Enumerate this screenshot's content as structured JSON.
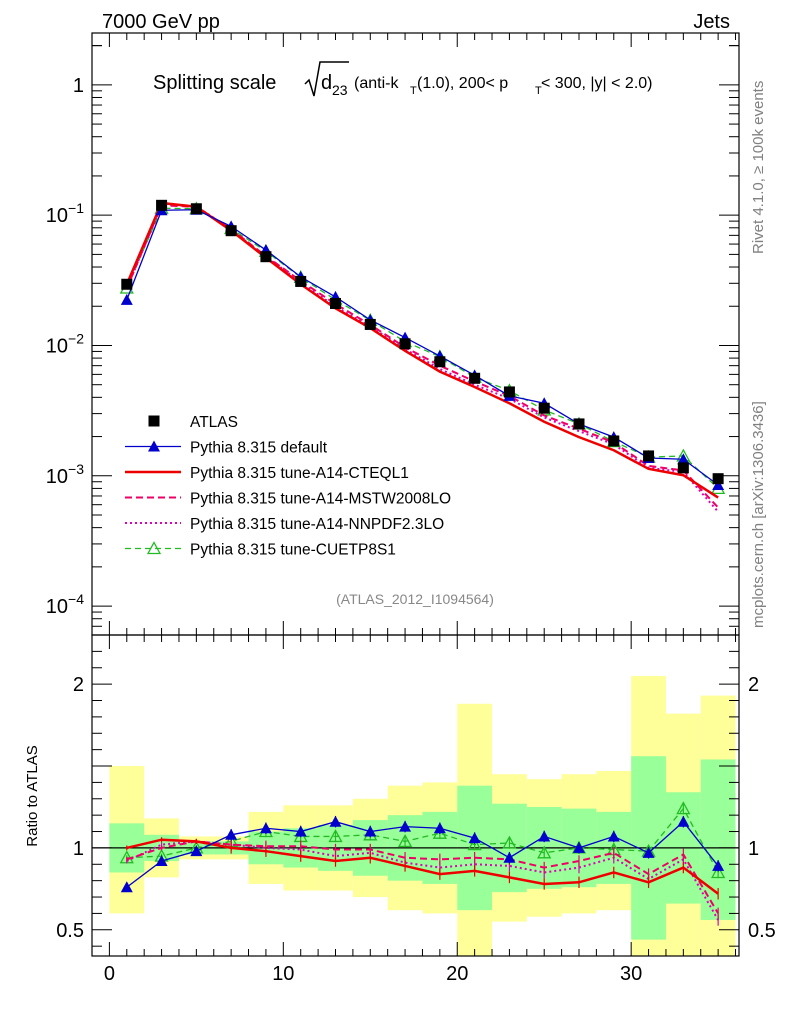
{
  "header": {
    "left": "7000 GeV pp",
    "right": "Jets"
  },
  "side_labels": {
    "top": "Rivet 4.1.0, ≥ 100k events",
    "bottom": "mcplots.cern.ch [arXiv:1306.3436]"
  },
  "chart_data": {
    "type": "line",
    "title": {
      "main": "Splitting scale",
      "var": "d",
      "var_sub": "23",
      "rest1": "(anti-k",
      "rest1_sub": "T",
      "rest2": "(1.0), 200< p",
      "rest2_sub": "T",
      "rest3": " < 300, |y| < 2.0)"
    },
    "analysis_id": "(ATLAS_2012_I1094564)",
    "xlim": [
      -1,
      36.2
    ],
    "x_ticks": [
      0,
      10,
      20,
      30
    ],
    "main_ylim": [
      6e-05,
      2.5
    ],
    "main_y_ticks": [
      {
        "value": 1,
        "base": "1",
        "exp": ""
      },
      {
        "value": 0.1,
        "base": "10",
        "exp": "−1"
      },
      {
        "value": 0.01,
        "base": "10",
        "exp": "−2"
      },
      {
        "value": 0.001,
        "base": "10",
        "exp": "−3"
      },
      {
        "value": 0.0001,
        "base": "10",
        "exp": "−4"
      }
    ],
    "ratio_ylim": [
      0.34,
      2.3
    ],
    "ratio_ylabel": "Ratio to ATLAS",
    "ratio_y_ticks": [
      {
        "value": 0.5,
        "label": "0.5"
      },
      {
        "value": 1,
        "label": "1"
      },
      {
        "value": 2,
        "label": "2"
      }
    ],
    "x": [
      1,
      3,
      5,
      7,
      9,
      11,
      13,
      15,
      17,
      19,
      21,
      23,
      25,
      27,
      29,
      31,
      33,
      35
    ],
    "bin_edges": [
      0,
      2,
      4,
      6,
      8,
      10,
      12,
      14,
      16,
      18,
      20,
      22,
      24,
      26,
      28,
      30,
      32,
      34,
      36
    ],
    "band_inner": [
      [
        0.85,
        1.15
      ],
      [
        0.92,
        1.08
      ],
      [
        0.96,
        1.04
      ],
      [
        0.96,
        1.04
      ],
      [
        0.9,
        1.1
      ],
      [
        0.88,
        1.12
      ],
      [
        0.86,
        1.14
      ],
      [
        0.83,
        1.17
      ],
      [
        0.8,
        1.2
      ],
      [
        0.78,
        1.22
      ],
      [
        0.62,
        1.38
      ],
      [
        0.73,
        1.27
      ],
      [
        0.75,
        1.25
      ],
      [
        0.76,
        1.24
      ],
      [
        0.78,
        1.22
      ],
      [
        0.44,
        1.56
      ],
      [
        0.66,
        1.34
      ],
      [
        0.56,
        1.54
      ]
    ],
    "band_outer": [
      [
        0.6,
        1.5
      ],
      [
        0.82,
        1.18
      ],
      [
        0.93,
        1.07
      ],
      [
        0.93,
        1.07
      ],
      [
        0.78,
        1.22
      ],
      [
        0.74,
        1.26
      ],
      [
        0.74,
        1.26
      ],
      [
        0.7,
        1.3
      ],
      [
        0.62,
        1.38
      ],
      [
        0.6,
        1.4
      ],
      [
        0.2,
        1.88
      ],
      [
        0.55,
        1.45
      ],
      [
        0.58,
        1.42
      ],
      [
        0.6,
        1.45
      ],
      [
        0.62,
        1.47
      ],
      [
        0.2,
        2.05
      ],
      [
        0.2,
        1.82
      ],
      [
        0.2,
        1.93
      ]
    ],
    "series": [
      {
        "name": "ATLAS",
        "style": "data",
        "color": "#000000",
        "values": [
          0.0295,
          0.119,
          0.112,
          0.076,
          0.048,
          0.031,
          0.021,
          0.0145,
          0.0103,
          0.0075,
          0.0056,
          0.0044,
          0.0033,
          0.0025,
          0.00185,
          0.00142,
          0.00115,
          0.00095
        ]
      },
      {
        "name": "Pythia 8.315 default",
        "style": "solid-thin",
        "color": "#0000cc",
        "marker": "triangle-filled",
        "values": [
          0.0224,
          0.109,
          0.11,
          0.082,
          0.054,
          0.0336,
          0.0236,
          0.0157,
          0.0115,
          0.0083,
          0.0059,
          0.0041,
          0.0036,
          0.0025,
          0.00198,
          0.00137,
          0.00134,
          0.00085
        ],
        "ratio": [
          0.76,
          0.92,
          0.98,
          1.08,
          1.12,
          1.1,
          1.16,
          1.1,
          1.13,
          1.12,
          1.06,
          0.94,
          1.07,
          1.0,
          1.07,
          0.97,
          1.16,
          0.89
        ]
      },
      {
        "name": "Pythia 8.315 tune-A14-CTEQL1",
        "style": "solid-thick",
        "color": "#ee0000",
        "values": [
          0.0295,
          0.124,
          0.116,
          0.0762,
          0.0471,
          0.0295,
          0.0193,
          0.0136,
          0.0091,
          0.0063,
          0.0048,
          0.0036,
          0.0026,
          0.00198,
          0.00157,
          0.00113,
          0.00101,
          0.00068
        ],
        "ratio": [
          1.0,
          1.05,
          1.04,
          1.0,
          0.98,
          0.95,
          0.92,
          0.94,
          0.89,
          0.84,
          0.86,
          0.82,
          0.78,
          0.79,
          0.85,
          0.79,
          0.88,
          0.72
        ]
      },
      {
        "name": "Pythia 8.315 tune-A14-MSTW2008LO",
        "style": "dashed",
        "color": "#ee0066",
        "values": [
          0.0275,
          0.119,
          0.116,
          0.078,
          0.0485,
          0.0313,
          0.0208,
          0.0144,
          0.0097,
          0.007,
          0.0053,
          0.0041,
          0.0029,
          0.0023,
          0.0018,
          0.00119,
          0.0011,
          0.00057
        ],
        "ratio": [
          0.93,
          1.0,
          1.04,
          1.02,
          1.01,
          1.01,
          0.99,
          0.99,
          0.94,
          0.93,
          0.94,
          0.93,
          0.88,
          0.92,
          0.97,
          0.84,
          0.96,
          0.6
        ]
      },
      {
        "name": "Pythia 8.315 tune-A14-NNPDF2.3LO",
        "style": "dotted",
        "color": "#dd00bb",
        "values": [
          0.0272,
          0.121,
          0.117,
          0.0775,
          0.048,
          0.0307,
          0.0198,
          0.014,
          0.0094,
          0.0066,
          0.005,
          0.0039,
          0.0028,
          0.0022,
          0.00174,
          0.00115,
          0.00107,
          0.00053
        ],
        "ratio": [
          0.92,
          1.02,
          1.04,
          1.02,
          1.0,
          0.99,
          0.95,
          0.97,
          0.91,
          0.88,
          0.9,
          0.89,
          0.85,
          0.88,
          0.94,
          0.81,
          0.93,
          0.56
        ]
      },
      {
        "name": "Pythia 8.315 tune-CUETP8S1",
        "style": "dashed-thin",
        "color": "#22bb22",
        "marker": "triangle-open",
        "values": [
          0.0276,
          0.113,
          0.112,
          0.079,
          0.0528,
          0.0333,
          0.0224,
          0.0156,
          0.0107,
          0.0082,
          0.0057,
          0.0045,
          0.0032,
          0.0025,
          0.00183,
          0.00139,
          0.00142,
          0.0008
        ],
        "ratio": [
          0.94,
          0.95,
          1.0,
          1.04,
          1.1,
          1.07,
          1.07,
          1.08,
          1.04,
          1.09,
          1.02,
          1.03,
          0.97,
          1.0,
          0.99,
          0.98,
          1.24,
          0.85
        ]
      }
    ]
  }
}
